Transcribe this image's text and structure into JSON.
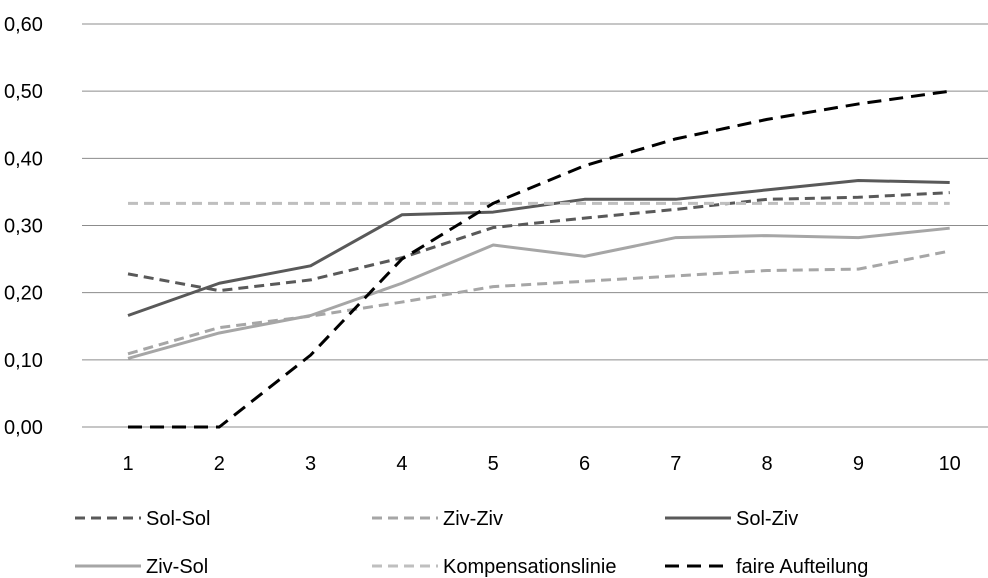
{
  "chart_data": {
    "type": "line",
    "title": "",
    "xlabel": "",
    "ylabel": "",
    "x": [
      1,
      2,
      3,
      4,
      5,
      6,
      7,
      8,
      9,
      10
    ],
    "ylim": [
      0,
      0.6
    ],
    "yticks": [
      0,
      0.1,
      0.2,
      0.3,
      0.4,
      0.5,
      0.6
    ],
    "ytick_labels": [
      "0,00",
      "0,10",
      "0,20",
      "0,30",
      "0,40",
      "0,50",
      "0,60"
    ],
    "xtick_labels": [
      "1",
      "2",
      "3",
      "4",
      "5",
      "6",
      "7",
      "8",
      "9",
      "10"
    ],
    "grid": "horizontal",
    "legend_position": "bottom",
    "series": [
      {
        "name": "Sol-Sol",
        "color": "#595959",
        "dash": "dashed",
        "values": [
          0.228,
          0.203,
          0.219,
          0.252,
          0.297,
          0.311,
          0.324,
          0.339,
          0.342,
          0.349
        ]
      },
      {
        "name": "Ziv-Ziv",
        "color": "#a6a6a6",
        "dash": "dashed",
        "values": [
          0.109,
          0.148,
          0.165,
          0.186,
          0.209,
          0.217,
          0.225,
          0.233,
          0.235,
          0.262
        ]
      },
      {
        "name": "Sol-Ziv",
        "color": "#595959",
        "dash": "solid",
        "values": [
          0.166,
          0.214,
          0.24,
          0.316,
          0.32,
          0.339,
          0.339,
          0.353,
          0.367,
          0.364
        ]
      },
      {
        "name": "Ziv-Sol",
        "color": "#a6a6a6",
        "dash": "solid",
        "values": [
          0.102,
          0.14,
          0.166,
          0.214,
          0.271,
          0.254,
          0.282,
          0.285,
          0.282,
          0.296
        ]
      },
      {
        "name": "Kompensationslinie",
        "color": "#bfbfbf",
        "dash": "dashed",
        "values": [
          0.333,
          0.333,
          0.333,
          0.333,
          0.333,
          0.333,
          0.333,
          0.333,
          0.333,
          0.333
        ]
      },
      {
        "name": "faire Aufteilung",
        "color": "#000000",
        "dash": "longdash",
        "values": [
          0.0,
          0.0,
          0.107,
          0.25,
          0.333,
          0.389,
          0.429,
          0.458,
          0.481,
          0.5
        ]
      }
    ]
  }
}
